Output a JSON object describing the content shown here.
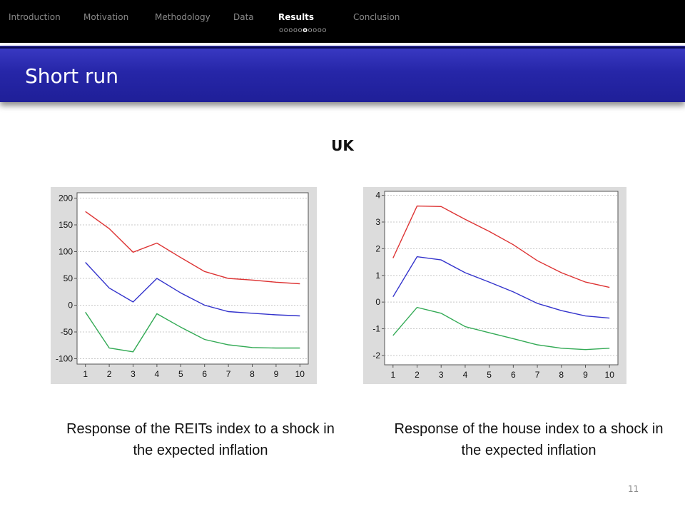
{
  "nav": {
    "items": [
      "Introduction",
      "Motivation",
      "Methodology",
      "Data",
      "Results",
      "Conclusion"
    ],
    "active_index": 4,
    "progress": {
      "before": "ooooo",
      "current": "o",
      "after": "oooo"
    }
  },
  "slide": {
    "title": "Short run",
    "subtitle": "UK",
    "page_number": "11",
    "captions": [
      "Response of the REITs index to a shock in the expected inflation",
      "Response of the house  index to a shock in the expected inflation"
    ]
  },
  "colors": {
    "upper": "#dd3333",
    "response": "#3333cc",
    "lower": "#33aa55",
    "title_bar": "#2626a8"
  },
  "chart_data": [
    {
      "type": "line",
      "x": [
        1,
        2,
        3,
        4,
        5,
        6,
        7,
        8,
        9,
        10
      ],
      "ylim": [
        -110,
        210
      ],
      "yticks": [
        200,
        150,
        100,
        50,
        0,
        -50,
        -100
      ],
      "ytick_labels": [
        "200",
        "150",
        "100",
        "50",
        "0",
        "-50",
        "-100"
      ],
      "grid": true,
      "series": [
        {
          "color": "#dd3333",
          "values": [
            175,
            143,
            99,
            116,
            89,
            63,
            50,
            47,
            43,
            40
          ]
        },
        {
          "color": "#3333cc",
          "values": [
            80,
            32,
            6,
            50,
            23,
            0,
            -12,
            -15,
            -18,
            -20
          ]
        },
        {
          "color": "#33aa55",
          "values": [
            -13,
            -80,
            -87,
            -16,
            -41,
            -64,
            -74,
            -79,
            -80,
            -80
          ]
        }
      ]
    },
    {
      "type": "line",
      "x": [
        1,
        2,
        3,
        4,
        5,
        6,
        7,
        8,
        9,
        10
      ],
      "ylim": [
        -2.35,
        4.15
      ],
      "yticks": [
        4,
        3,
        2,
        1,
        0,
        -1,
        -2
      ],
      "ytick_labels": [
        "4",
        "3",
        "2",
        "1",
        "0",
        "-1",
        "-2"
      ],
      "grid": true,
      "series": [
        {
          "color": "#dd3333",
          "values": [
            1.65,
            3.6,
            3.58,
            3.1,
            2.65,
            2.15,
            1.55,
            1.1,
            0.75,
            0.55
          ]
        },
        {
          "color": "#3333cc",
          "values": [
            0.2,
            1.7,
            1.58,
            1.1,
            0.75,
            0.38,
            -0.05,
            -0.32,
            -0.52,
            -0.6
          ]
        },
        {
          "color": "#33aa55",
          "values": [
            -1.25,
            -0.2,
            -0.42,
            -0.92,
            -1.15,
            -1.37,
            -1.6,
            -1.73,
            -1.78,
            -1.73
          ]
        }
      ]
    }
  ]
}
